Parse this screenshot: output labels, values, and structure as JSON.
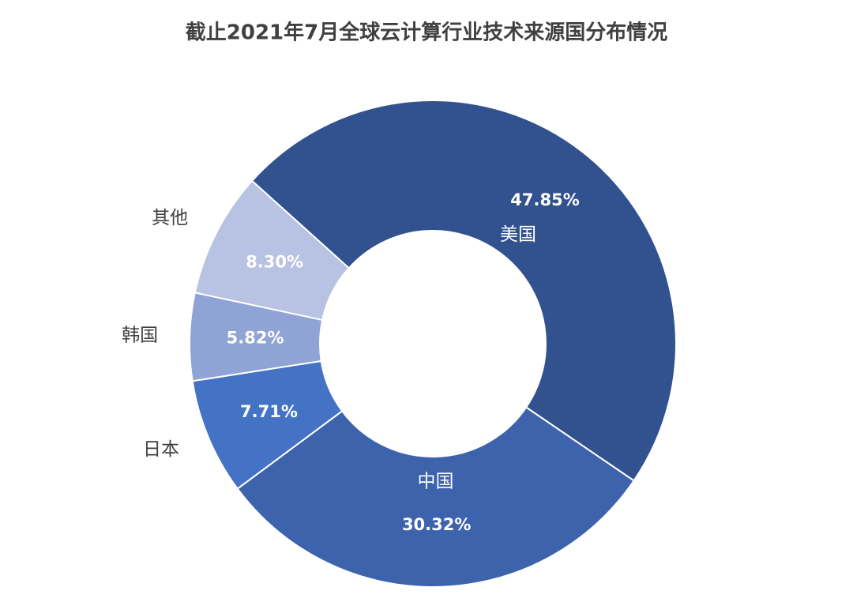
{
  "chart_data": {
    "type": "donut",
    "title": "截止2021年7月全球云计算行业技术来源国分布情况",
    "categories": [
      "美国",
      "中国",
      "日本",
      "韩国",
      "其他"
    ],
    "values": [
      47.85,
      30.32,
      7.71,
      5.82,
      8.3
    ],
    "value_labels": [
      "47.85%",
      "30.32%",
      "7.71%",
      "5.82%",
      "8.30%"
    ],
    "colors": [
      "#31528f",
      "#3d63ac",
      "#4472c4",
      "#8fa3d4",
      "#b8c2e2"
    ]
  }
}
